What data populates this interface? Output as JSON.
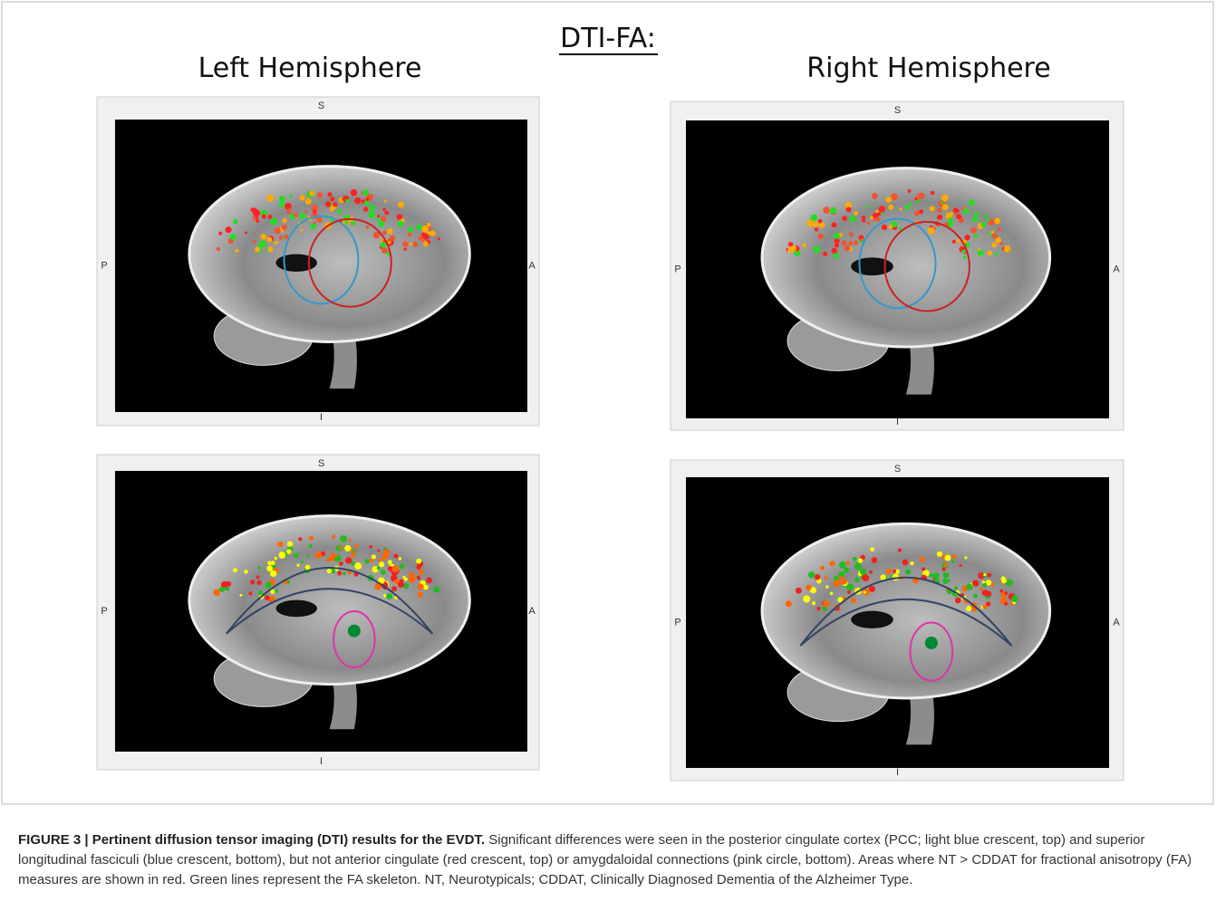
{
  "header": {
    "title": "DTI-FA:",
    "left": "Left Hemisphere",
    "right": "Right Hemisphere"
  },
  "panels": [
    {
      "top": "S",
      "left": "P",
      "right": "A",
      "bottom": "I"
    },
    {
      "top": "S",
      "left": "P",
      "right": "A",
      "bottom": "I"
    },
    {
      "top": "S",
      "left": "P",
      "right": "A",
      "bottom": "I"
    },
    {
      "top": "S",
      "left": "P",
      "right": "A",
      "bottom": "I"
    }
  ],
  "caption": {
    "label": "FIGURE 3 | Pertinent diffusion tensor imaging (DTI) results for the EVDT.",
    "text": "Significant differences were seen in the posterior cingulate cortex (PCC; light blue crescent, top) and superior longitudinal fasciculi (blue crescent, bottom), but not anterior cingulate (red crescent, top) or amygdaloidal connections (pink circle, bottom). Areas where NT > CDDAT for fractional anisotropy (FA) measures are shown in red. Green lines represent the FA skeleton. NT, Neurotypicals; CDDAT, Clinically Diagnosed Dementia of the Alzheimer Type."
  }
}
